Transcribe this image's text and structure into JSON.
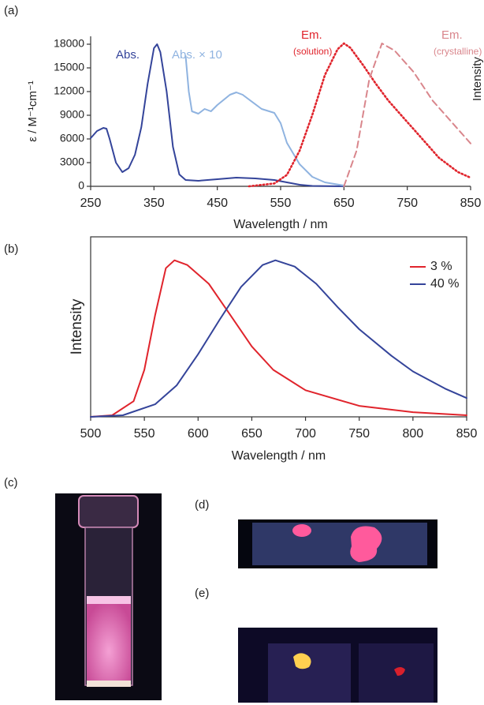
{
  "chart_data": [
    {
      "type": "line",
      "panel": "(a)",
      "xlabel": "Wavelength / nm",
      "ylabel": "ε / M⁻¹cm⁻¹",
      "y2label": "Intensity",
      "xlim": [
        250,
        850
      ],
      "xticks": [
        250,
        350,
        450,
        550,
        650,
        750,
        850
      ],
      "ylim": [
        0,
        19000
      ],
      "yticks": [
        0,
        3000,
        6000,
        9000,
        12000,
        15000,
        18000
      ],
      "y2lim": [
        0,
        1.05
      ],
      "series": [
        {
          "name": "Abs.",
          "color": "#34449a",
          "style": "solid",
          "x": [
            250,
            260,
            270,
            275,
            280,
            290,
            300,
            310,
            320,
            330,
            340,
            350,
            355,
            360,
            370,
            380,
            390,
            400,
            420,
            450,
            480,
            510,
            540,
            560,
            580,
            600,
            650
          ],
          "values": [
            6100,
            7000,
            7400,
            7300,
            6000,
            3000,
            1800,
            2300,
            4000,
            7500,
            13000,
            17500,
            18000,
            17000,
            12000,
            5000,
            1500,
            800,
            700,
            900,
            1100,
            1000,
            800,
            500,
            200,
            50,
            0
          ]
        },
        {
          "name": "Abs. × 10",
          "color": "#8fb3e0",
          "style": "solid",
          "x": [
            400,
            405,
            410,
            420,
            430,
            440,
            450,
            470,
            480,
            490,
            500,
            520,
            540,
            550,
            560,
            580,
            600,
            620,
            650
          ],
          "values": [
            16500,
            12000,
            9500,
            9200,
            9800,
            9500,
            10300,
            11600,
            11900,
            11600,
            11000,
            9800,
            9300,
            8000,
            5500,
            2800,
            1200,
            500,
            100
          ]
        },
        {
          "name": "Em.",
          "sublabel": "(solution)",
          "color": "#e0242c",
          "style": "dotted",
          "axis": "y2",
          "x": [
            500,
            540,
            560,
            580,
            600,
            620,
            640,
            650,
            660,
            680,
            700,
            720,
            750,
            780,
            800,
            830,
            850
          ],
          "values": [
            0,
            0.02,
            0.08,
            0.25,
            0.5,
            0.78,
            0.96,
            1.0,
            0.97,
            0.85,
            0.72,
            0.6,
            0.45,
            0.3,
            0.2,
            0.1,
            0.06
          ]
        },
        {
          "name": "Em.",
          "sublabel": "(crystalline)",
          "color": "#d9868c",
          "style": "dashed",
          "axis": "y2",
          "x": [
            650,
            670,
            690,
            710,
            730,
            760,
            790,
            820,
            850
          ],
          "values": [
            0,
            0.25,
            0.75,
            1.0,
            0.95,
            0.8,
            0.6,
            0.45,
            0.3
          ]
        }
      ]
    },
    {
      "type": "line",
      "panel": "(b)",
      "xlabel": "Wavelength / nm",
      "ylabel": "Intensity",
      "xlim": [
        500,
        850
      ],
      "xticks": [
        500,
        550,
        600,
        650,
        700,
        750,
        800,
        850
      ],
      "ylim": [
        0,
        1.15
      ],
      "legend": "upper right",
      "series": [
        {
          "name": "3 %",
          "color": "#e0242c",
          "style": "solid",
          "x": [
            500,
            520,
            540,
            550,
            560,
            570,
            578,
            590,
            610,
            630,
            650,
            670,
            700,
            750,
            800,
            850
          ],
          "values": [
            0,
            0.01,
            0.1,
            0.3,
            0.65,
            0.95,
            1.0,
            0.97,
            0.85,
            0.65,
            0.45,
            0.3,
            0.17,
            0.07,
            0.03,
            0.01
          ]
        },
        {
          "name": "40 %",
          "color": "#34449a",
          "style": "solid",
          "x": [
            500,
            530,
            560,
            580,
            600,
            620,
            640,
            660,
            672,
            690,
            710,
            730,
            750,
            780,
            800,
            830,
            850
          ],
          "values": [
            0,
            0.01,
            0.08,
            0.2,
            0.4,
            0.62,
            0.83,
            0.97,
            1.0,
            0.96,
            0.85,
            0.7,
            0.56,
            0.39,
            0.29,
            0.18,
            0.12
          ]
        }
      ]
    }
  ],
  "photo_panels": [
    "(c)",
    "(d)",
    "(e)"
  ]
}
